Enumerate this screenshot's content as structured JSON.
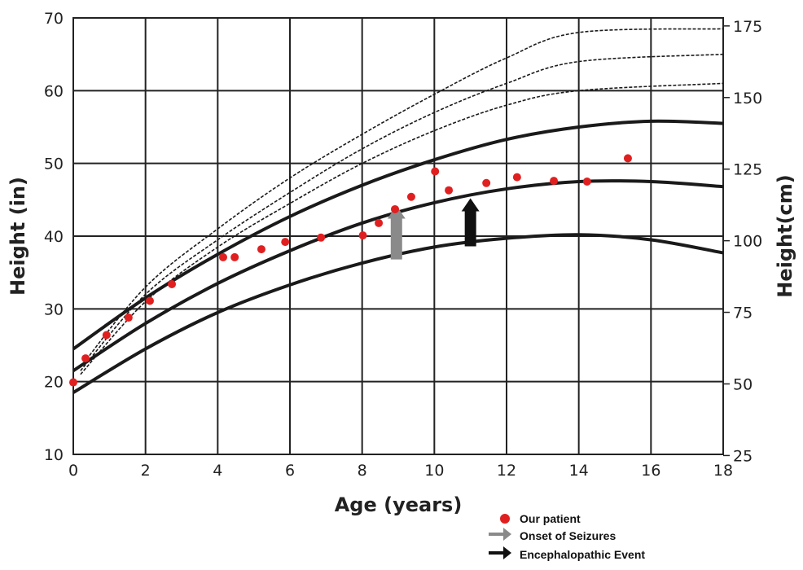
{
  "chart_data": {
    "type": "line",
    "title": "",
    "xlabel": "Age (years)",
    "ylabel": "Height (in)",
    "ylabel_right": "Height(cm)",
    "xlim": [
      0,
      18
    ],
    "ylim": [
      10,
      70
    ],
    "x_ticks": [
      0,
      2,
      4,
      6,
      8,
      10,
      12,
      14,
      16,
      18
    ],
    "y_ticks": [
      10,
      20,
      30,
      40,
      50,
      60,
      70
    ],
    "y_right_ticks": [
      25,
      50,
      75,
      100,
      125,
      150,
      175
    ],
    "grid": true,
    "legend_position": "bottom-right",
    "series": [
      {
        "name": "Upper solid curve",
        "style": "solid",
        "x": [
          0,
          2,
          4,
          6,
          8,
          10,
          12,
          14,
          16,
          18
        ],
        "y": [
          24.5,
          31.5,
          37.5,
          42.7,
          47,
          50.5,
          53.3,
          55,
          55.8,
          55.5
        ]
      },
      {
        "name": "Middle solid curve",
        "style": "solid",
        "x": [
          0,
          2,
          4,
          6,
          8,
          10,
          12,
          14,
          16,
          18
        ],
        "y": [
          21.5,
          28,
          33.5,
          38,
          41.8,
          44.6,
          46.5,
          47.5,
          47.5,
          46.8
        ]
      },
      {
        "name": "Lower solid curve",
        "style": "solid",
        "x": [
          0,
          2,
          4,
          6,
          8,
          10,
          12,
          14,
          16,
          18
        ],
        "y": [
          18.5,
          24.5,
          29.5,
          33.3,
          36.3,
          38.5,
          39.7,
          40.2,
          39.5,
          37.7
        ]
      },
      {
        "name": "Upper dashed curve",
        "style": "dashed",
        "x": [
          0.2,
          2,
          4,
          6,
          8,
          10,
          12,
          14,
          18
        ],
        "y": [
          22,
          33,
          41,
          48,
          54,
          59.5,
          64.5,
          68,
          68.5
        ]
      },
      {
        "name": "Middle dashed curve",
        "style": "dashed",
        "x": [
          0.2,
          2,
          4,
          6,
          8,
          10,
          12,
          14,
          18
        ],
        "y": [
          21.5,
          32,
          39.5,
          46,
          52,
          57,
          61,
          64,
          65
        ]
      },
      {
        "name": "Lower dashed curve",
        "style": "dashed",
        "x": [
          0.2,
          2,
          4,
          6,
          8,
          10,
          12,
          14,
          18
        ],
        "y": [
          21,
          31,
          38.5,
          44.5,
          50,
          54.5,
          58,
          60,
          61
        ]
      }
    ],
    "points": {
      "name": "Our patient",
      "color": "#e02020",
      "x": [
        0,
        0.34,
        0.92,
        1.53,
        2.12,
        2.73,
        4.15,
        4.47,
        5.21,
        5.87,
        6.86,
        8.02,
        8.46,
        8.91,
        9.36,
        10.02,
        10.4,
        11.44,
        12.29,
        13.31,
        14.23,
        15.36
      ],
      "y": [
        19.9,
        23.2,
        26.4,
        28.8,
        31.1,
        33.4,
        37.1,
        37.1,
        38.2,
        39.2,
        39.8,
        40.1,
        41.8,
        43.7,
        45.4,
        48.9,
        46.3,
        47.3,
        48.1,
        47.6,
        47.5,
        50.7
      ]
    },
    "arrows": [
      {
        "name": "Onset of Seizures",
        "color": "#8a8a8a",
        "x": 8.95,
        "y_from": 36.8,
        "y_to": 44.2
      },
      {
        "name": "Encephalopathic Event",
        "color": "#111111",
        "x": 11.0,
        "y_from": 38.6,
        "y_to": 45.2
      }
    ],
    "legend": [
      "Our patient",
      "Onset of Seizures",
      "Encephalopathic Event"
    ]
  }
}
